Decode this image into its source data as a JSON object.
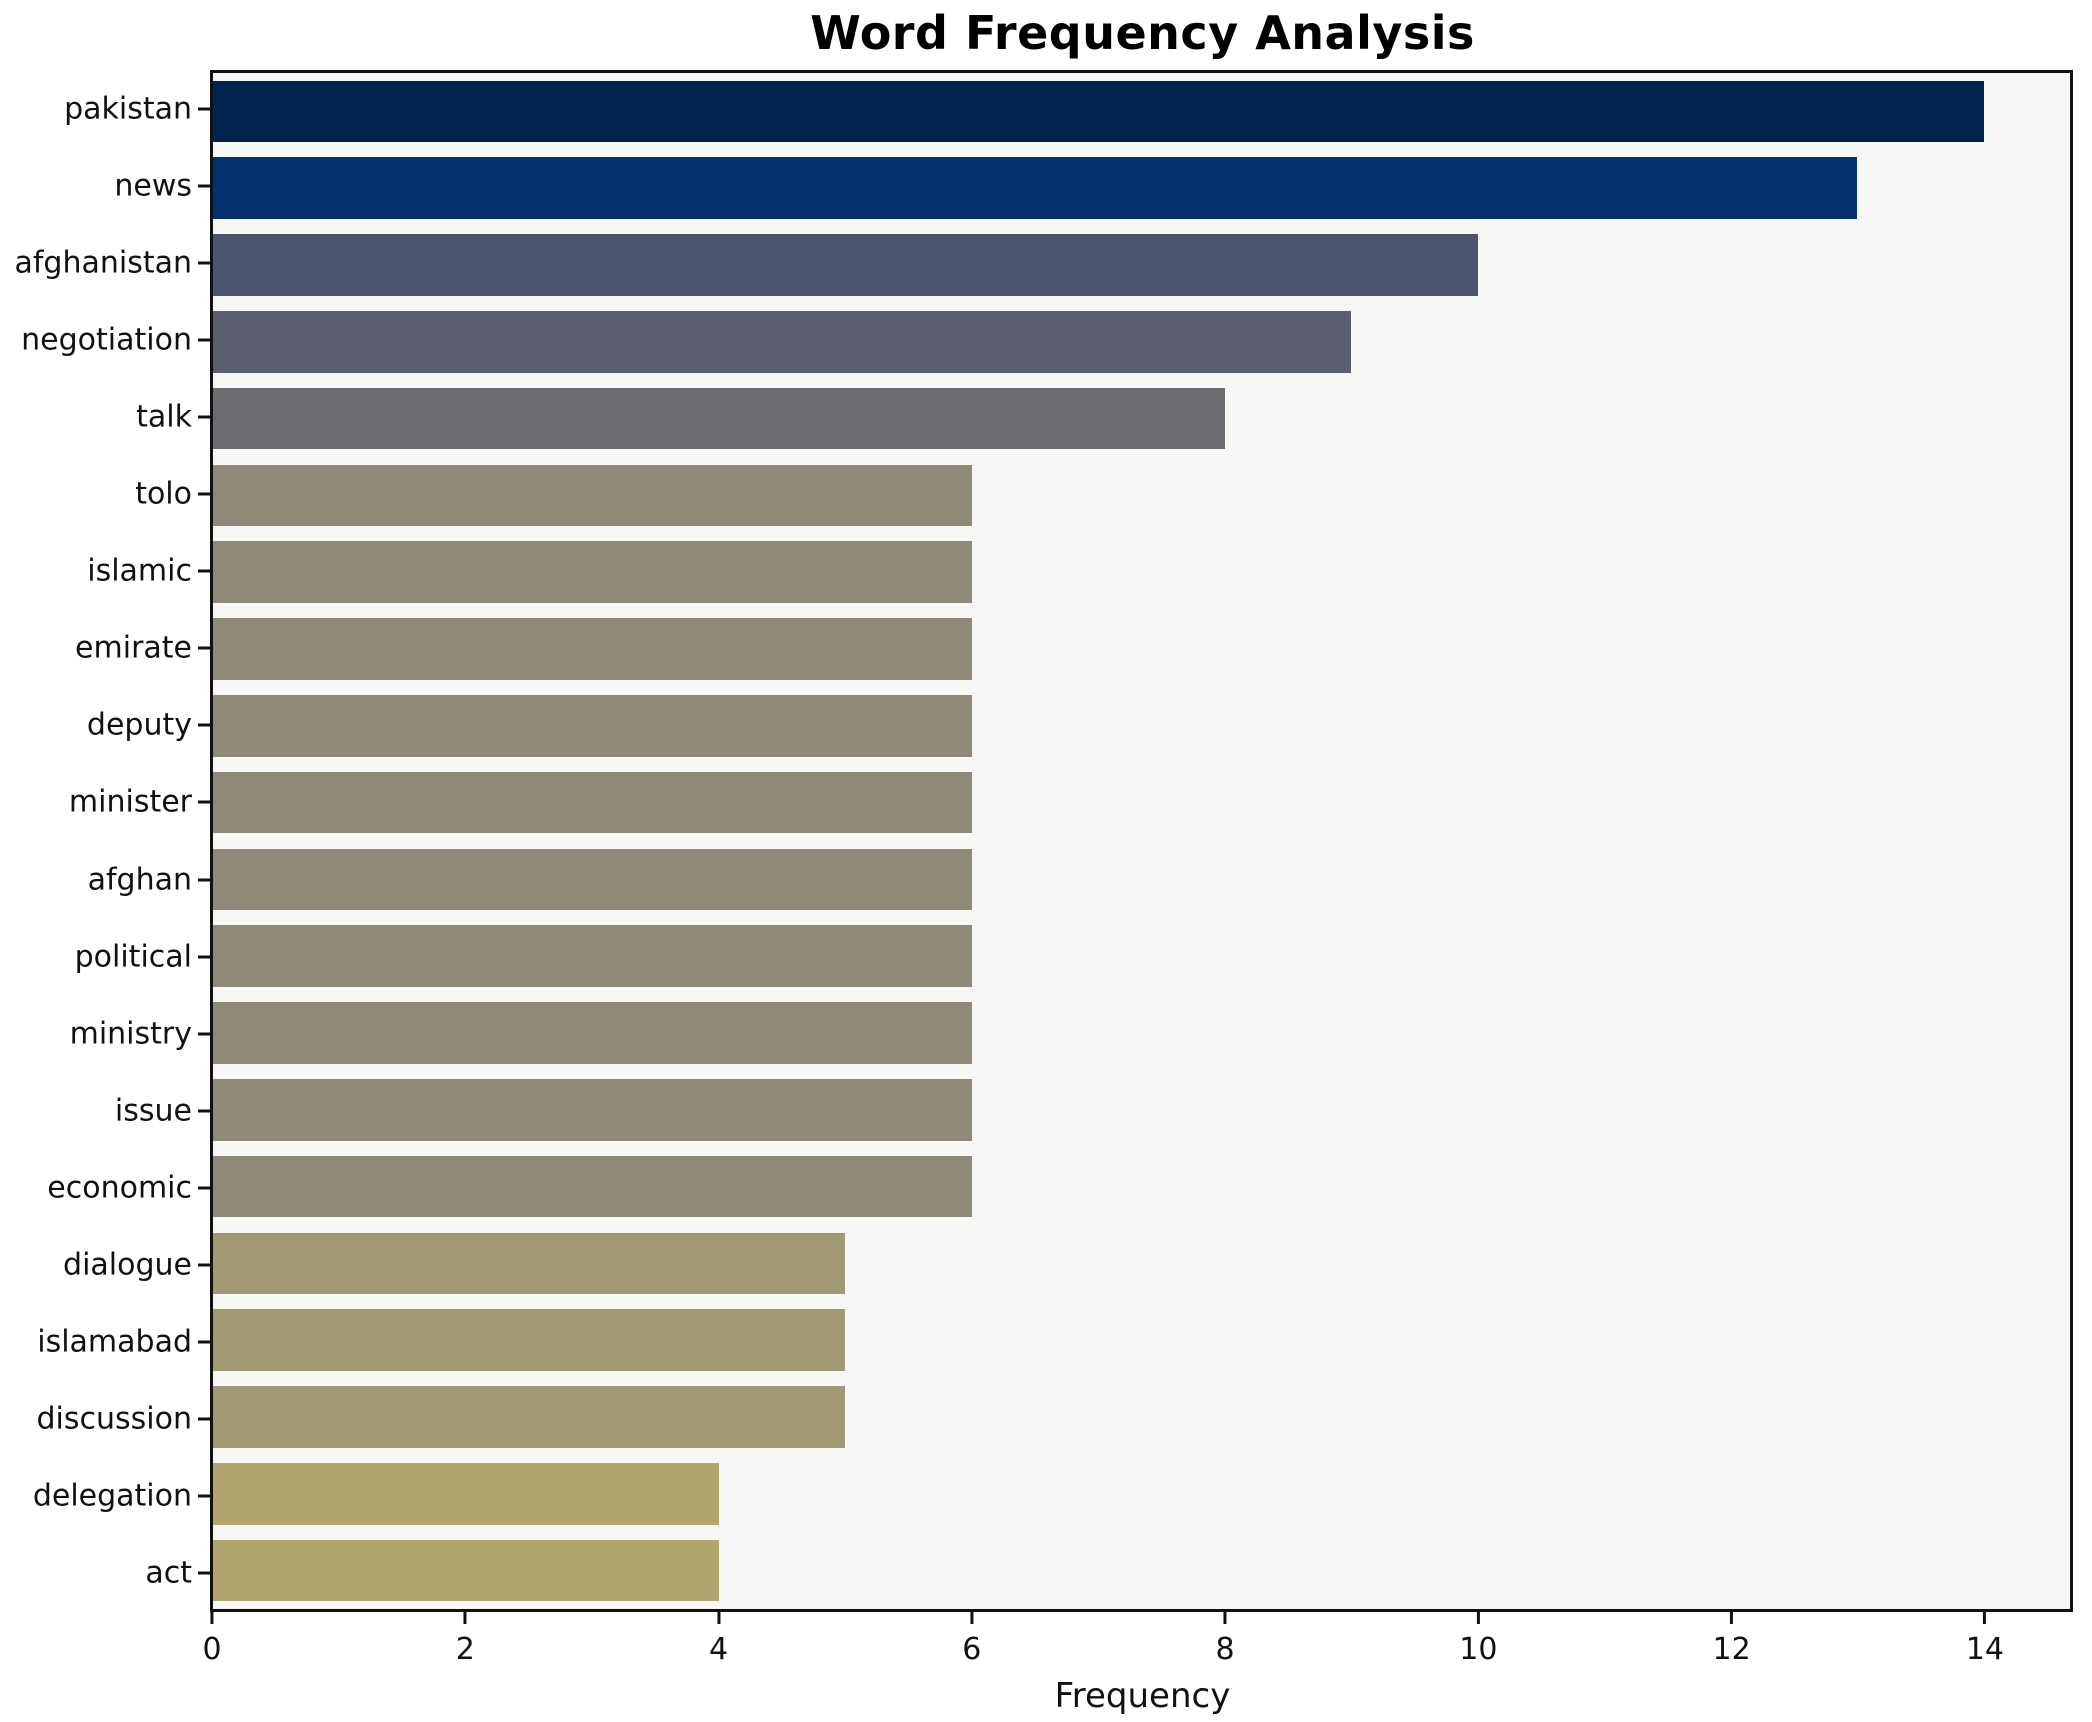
{
  "chart_data": {
    "type": "bar",
    "orientation": "horizontal",
    "title": "Word Frequency Analysis",
    "xlabel": "Frequency",
    "ylabel": "",
    "categories": [
      "pakistan",
      "news",
      "afghanistan",
      "negotiation",
      "talk",
      "tolo",
      "islamic",
      "emirate",
      "deputy",
      "minister",
      "afghan",
      "political",
      "ministry",
      "issue",
      "economic",
      "dialogue",
      "islamabad",
      "discussion",
      "delegation",
      "act"
    ],
    "values": [
      14,
      13,
      10,
      9,
      8,
      6,
      6,
      6,
      6,
      6,
      6,
      6,
      6,
      6,
      6,
      5,
      5,
      5,
      4,
      4
    ],
    "bar_colors": [
      "#02234e",
      "#03316d",
      "#4d546e",
      "#5a5e6c",
      "#6b6c70",
      "#8e8979",
      "#8e8979",
      "#8e8979",
      "#8e8979",
      "#8e8979",
      "#8e8979",
      "#8e8979",
      "#8e8979",
      "#8e8979",
      "#8e8979",
      "#a09974",
      "#a09974",
      "#a09974",
      "#b0a56d",
      "#b0a56d"
    ],
    "xlim": [
      0,
      14.68
    ],
    "xticks": [
      0,
      2,
      4,
      6,
      8,
      10,
      12,
      14
    ],
    "bar_band_fraction": 0.8,
    "grid": false,
    "legend": false,
    "plot_background": "#f7f7f6",
    "figure_background": "#ffffff",
    "spine_color": "#111111"
  }
}
